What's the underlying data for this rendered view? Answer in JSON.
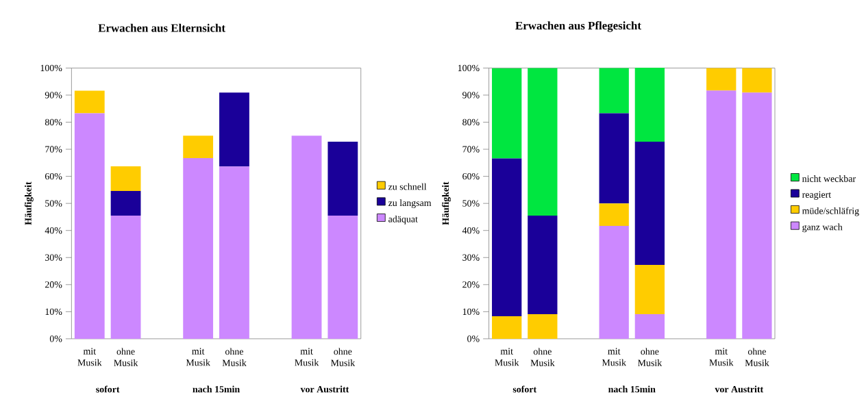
{
  "chart_data": [
    {
      "type": "bar",
      "stacked": true,
      "title": "Erwachen aus Elternsicht",
      "ylabel": "Häufigkeit",
      "categories": [
        "mit Musik",
        "ohne Musik",
        null,
        "mit Musik",
        "ohne Musik",
        null,
        "mit Musik",
        "ohne Musik"
      ],
      "series": [
        {
          "name": "adäquat",
          "color": "#cc88ff",
          "values": [
            83.3,
            45.5,
            null,
            66.7,
            63.6,
            null,
            75,
            45.5
          ]
        },
        {
          "name": "zu langsam",
          "color": "#1a0099",
          "values": [
            0,
            9.1,
            null,
            0,
            27.3,
            null,
            0,
            27.3
          ]
        },
        {
          "name": "zu schnell",
          "color": "#ffcc00",
          "values": [
            8.3,
            9.1,
            null,
            8.3,
            0,
            null,
            0,
            0
          ]
        }
      ],
      "ylim": [
        0,
        100
      ],
      "yticks": [
        {
          "value": 0,
          "label": "0%"
        },
        {
          "value": 10,
          "label": "10%"
        },
        {
          "value": 20,
          "label": "20%"
        },
        {
          "value": 30,
          "label": "30%"
        },
        {
          "value": 40,
          "label": "40%"
        },
        {
          "value": 50,
          "label": "50%"
        },
        {
          "value": 60,
          "label": "60%"
        },
        {
          "value": 70,
          "label": "70%"
        },
        {
          "value": 80,
          "label": "80%"
        },
        {
          "value": 90,
          "label": "90%"
        },
        {
          "value": 100,
          "label": "100%"
        }
      ],
      "legend": "right",
      "annotations": [
        "sofort",
        "nach 15min",
        "vor Austritt"
      ]
    },
    {
      "type": "bar",
      "stacked": true,
      "title": "Erwachen aus Pflegesicht",
      "ylabel": "Häufigkeit",
      "categories": [
        "mit Musik",
        "ohne Musik",
        null,
        "mit Musik",
        "ohne Musik",
        null,
        "mit Musik",
        "ohne Musik"
      ],
      "series": [
        {
          "name": "ganz wach",
          "color": "#cc88ff",
          "values": [
            0,
            0,
            null,
            41.7,
            9.1,
            null,
            91.7,
            90.9
          ]
        },
        {
          "name": "müde/schläfrig",
          "color": "#ffcc00",
          "values": [
            8.3,
            9.1,
            null,
            8.3,
            18.2,
            null,
            8.3,
            9.1
          ]
        },
        {
          "name": "reagiert",
          "color": "#1a0099",
          "values": [
            58.3,
            36.4,
            null,
            33.3,
            45.5,
            null,
            0,
            0
          ]
        },
        {
          "name": "nicht weckbar",
          "color": "#00e640",
          "values": [
            33.3,
            54.5,
            null,
            16.7,
            27.3,
            null,
            0,
            0
          ]
        }
      ],
      "ylim": [
        0,
        100
      ],
      "yticks": [
        {
          "value": 0,
          "label": "0%"
        },
        {
          "value": 10,
          "label": "10%"
        },
        {
          "value": 20,
          "label": "20%"
        },
        {
          "value": 30,
          "label": "30%"
        },
        {
          "value": 40,
          "label": "40%"
        },
        {
          "value": 50,
          "label": "50%"
        },
        {
          "value": 60,
          "label": "60%"
        },
        {
          "value": 70,
          "label": "70%"
        },
        {
          "value": 80,
          "label": "80%"
        },
        {
          "value": 90,
          "label": "90%"
        },
        {
          "value": 100,
          "label": "100%"
        }
      ],
      "legend": "right",
      "annotations": [
        "sofort",
        "nach 15min",
        "vor Austritt"
      ]
    }
  ]
}
